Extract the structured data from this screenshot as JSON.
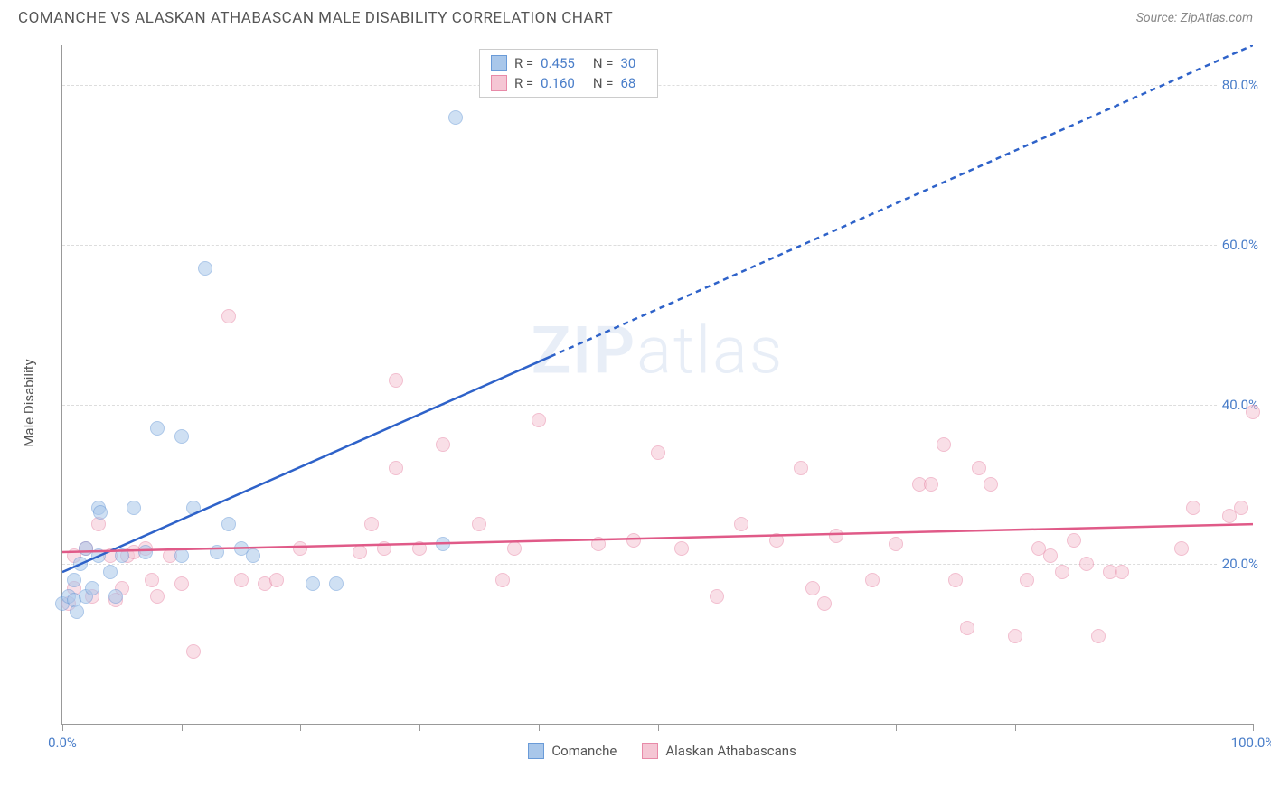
{
  "header": {
    "title": "COMANCHE VS ALASKAN ATHABASCAN MALE DISABILITY CORRELATION CHART",
    "source": "Source: ZipAtlas.com"
  },
  "chart": {
    "type": "scatter",
    "ylabel": "Male Disability",
    "xlim": [
      0,
      100
    ],
    "ylim": [
      0,
      85
    ],
    "ytick_step": 20,
    "yticks": [
      20,
      40,
      60,
      80
    ],
    "xtick_positions": [
      0,
      10,
      20,
      30,
      40,
      50,
      60,
      70,
      80,
      90,
      100
    ],
    "xtick_labels": {
      "0": "0.0%",
      "100": "100.0%"
    },
    "grid_color": "#dddddd",
    "axis_color": "#999999",
    "background_color": "#ffffff",
    "tick_label_color": "#4a7ec9",
    "marker_radius": 8,
    "marker_opacity": 0.55,
    "watermark": "ZIPatlas"
  },
  "series": {
    "comanche": {
      "label": "Comanche",
      "fill_color": "#a9c7ea",
      "stroke_color": "#6a9bd8",
      "line_color": "#2e62c9",
      "r": "0.455",
      "n": "30",
      "regression": {
        "x1": 0,
        "y1": 19,
        "x2_solid": 41,
        "y2_solid": 46,
        "x2_dash": 100,
        "y2_dash": 85
      },
      "points": [
        [
          0,
          15
        ],
        [
          0.5,
          16
        ],
        [
          1,
          15.5
        ],
        [
          1,
          18
        ],
        [
          1.2,
          14
        ],
        [
          1.5,
          20
        ],
        [
          2,
          22
        ],
        [
          2,
          16
        ],
        [
          2.5,
          17
        ],
        [
          3,
          21
        ],
        [
          3,
          27
        ],
        [
          3.2,
          26.5
        ],
        [
          4,
          19
        ],
        [
          4.5,
          16
        ],
        [
          5,
          21
        ],
        [
          6,
          27
        ],
        [
          7,
          21.5
        ],
        [
          8,
          37
        ],
        [
          10,
          21
        ],
        [
          10,
          36
        ],
        [
          11,
          27
        ],
        [
          12,
          57
        ],
        [
          13,
          21.5
        ],
        [
          14,
          25
        ],
        [
          15,
          22
        ],
        [
          16,
          21
        ],
        [
          21,
          17.5
        ],
        [
          23,
          17.5
        ],
        [
          32,
          22.5
        ],
        [
          33,
          76
        ]
      ]
    },
    "athabascan": {
      "label": "Alaskan Athabascans",
      "fill_color": "#f5c6d4",
      "stroke_color": "#e88aa8",
      "line_color": "#e05a88",
      "r": "0.160",
      "n": "68",
      "regression": {
        "x1": 0,
        "y1": 21.5,
        "x2_solid": 100,
        "y2_solid": 25
      },
      "points": [
        [
          0.5,
          15
        ],
        [
          1,
          17
        ],
        [
          1,
          21
        ],
        [
          2,
          22
        ],
        [
          2.5,
          16
        ],
        [
          3,
          25
        ],
        [
          4,
          21
        ],
        [
          4.5,
          15.5
        ],
        [
          5,
          17
        ],
        [
          5.5,
          21
        ],
        [
          6,
          21.5
        ],
        [
          7,
          22
        ],
        [
          7.5,
          18
        ],
        [
          8,
          16
        ],
        [
          9,
          21
        ],
        [
          10,
          17.5
        ],
        [
          11,
          9
        ],
        [
          14,
          51
        ],
        [
          15,
          18
        ],
        [
          17,
          17.5
        ],
        [
          18,
          18
        ],
        [
          20,
          22
        ],
        [
          25,
          21.5
        ],
        [
          26,
          25
        ],
        [
          27,
          22
        ],
        [
          28,
          32
        ],
        [
          28,
          43
        ],
        [
          30,
          22
        ],
        [
          32,
          35
        ],
        [
          35,
          25
        ],
        [
          37,
          18
        ],
        [
          38,
          22
        ],
        [
          40,
          38
        ],
        [
          45,
          22.5
        ],
        [
          48,
          23
        ],
        [
          50,
          34
        ],
        [
          52,
          22
        ],
        [
          55,
          16
        ],
        [
          57,
          25
        ],
        [
          60,
          23
        ],
        [
          62,
          32
        ],
        [
          63,
          17
        ],
        [
          64,
          15
        ],
        [
          65,
          23.5
        ],
        [
          68,
          18
        ],
        [
          70,
          22.5
        ],
        [
          72,
          30
        ],
        [
          73,
          30
        ],
        [
          74,
          35
        ],
        [
          75,
          18
        ],
        [
          76,
          12
        ],
        [
          77,
          32
        ],
        [
          78,
          30
        ],
        [
          80,
          11
        ],
        [
          81,
          18
        ],
        [
          82,
          22
        ],
        [
          83,
          21
        ],
        [
          84,
          19
        ],
        [
          85,
          23
        ],
        [
          86,
          20
        ],
        [
          87,
          11
        ],
        [
          88,
          19
        ],
        [
          89,
          19
        ],
        [
          94,
          22
        ],
        [
          95,
          27
        ],
        [
          98,
          26
        ],
        [
          99,
          27
        ],
        [
          100,
          39
        ]
      ]
    }
  },
  "legend_top": {
    "r_label": "R =",
    "n_label": "N ="
  }
}
